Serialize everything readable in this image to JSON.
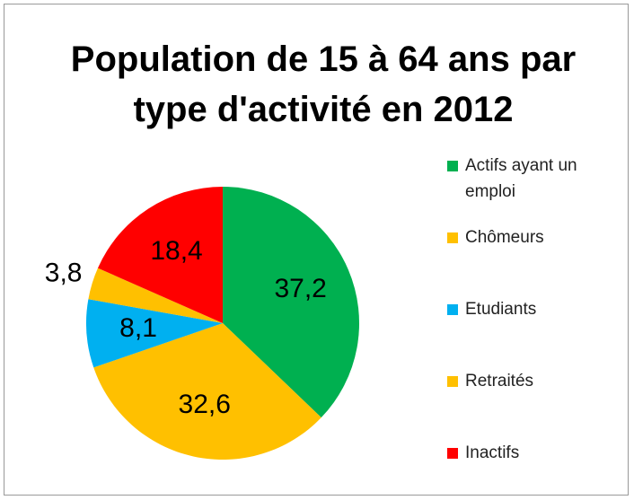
{
  "chart_data": {
    "type": "pie",
    "title": "Population de 15 à 64 ans par type d'activité en 2012",
    "categories": [
      "Actifs ayant un emploi",
      "Chômeurs",
      "Etudiants",
      "Retraités",
      "Inactifs"
    ],
    "values": [
      37.2,
      32.6,
      8.1,
      3.8,
      18.4
    ],
    "value_labels": [
      "37,2",
      "32,6",
      "8,1",
      "3,8",
      "18,4"
    ],
    "colors": [
      "#00b050",
      "#ffc000",
      "#00b0f0",
      "#ffc000",
      "#ff0000"
    ],
    "legend": "right"
  }
}
